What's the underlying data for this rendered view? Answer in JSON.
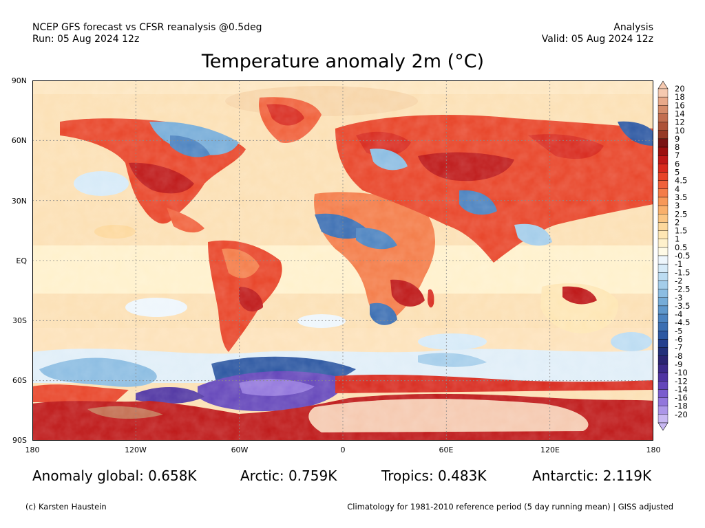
{
  "header": {
    "line1": "NCEP GFS forecast vs CFSR reanalysis @0.5deg",
    "line2": "Run: 05 Aug 2024 12z",
    "right1": "Analysis",
    "right2": "Valid: 05 Aug 2024 12z"
  },
  "title": "Temperature anomaly 2m (°C)",
  "lat_labels": [
    "90N",
    "60N",
    "30N",
    "EQ",
    "30S",
    "60S",
    "90S"
  ],
  "lon_labels": [
    "180",
    "120W",
    "60W",
    "0",
    "60E",
    "120E",
    "180"
  ],
  "colorbar": {
    "labels": [
      "20",
      "18",
      "16",
      "14",
      "12",
      "10",
      "9",
      "8",
      "7",
      "6",
      "5",
      "4.5",
      "4",
      "3.5",
      "3",
      "2.5",
      "2",
      "1.5",
      "1",
      "0.5",
      "-0.5",
      "-1",
      "-1.5",
      "-2",
      "-2.5",
      "-3",
      "-3.5",
      "-4",
      "-4.5",
      "-5",
      "-6",
      "-7",
      "-8",
      "-9",
      "-10",
      "-12",
      "-14",
      "-16",
      "-18",
      "-20"
    ],
    "colors": [
      "#f5c9b0",
      "#e8a98a",
      "#d58b6a",
      "#c26e50",
      "#ad5238",
      "#963a26",
      "#7a1414",
      "#9c1010",
      "#be1818",
      "#d82a1e",
      "#e84428",
      "#f0603a",
      "#f47c48",
      "#f79858",
      "#f9b06c",
      "#fbc684",
      "#fdd89c",
      "#fee6b4",
      "#fff1cc",
      "#fffae6",
      "#eef6fc",
      "#d6eaf8",
      "#bcdcf2",
      "#a4cdea",
      "#8cbde2",
      "#76acd8",
      "#6098cc",
      "#4c83c0",
      "#3b6eb2",
      "#2d58a2",
      "#24408e",
      "#22307a",
      "#2a2472",
      "#3c2a8a",
      "#4f34a2",
      "#6446ba",
      "#7a5cce",
      "#9276dc",
      "#ac96e8",
      "#c8b8f2"
    ]
  },
  "stats": {
    "global": "Anomaly global: 0.658K",
    "arctic": "Arctic: 0.759K",
    "tropics": "Tropics: 0.483K",
    "antarctic": "Antarctic: 2.119K"
  },
  "footer": {
    "credit": "(c) Karsten Haustein",
    "note": "Climatology for 1981-2010 reference period (5 day running mean) | GISS adjusted"
  }
}
